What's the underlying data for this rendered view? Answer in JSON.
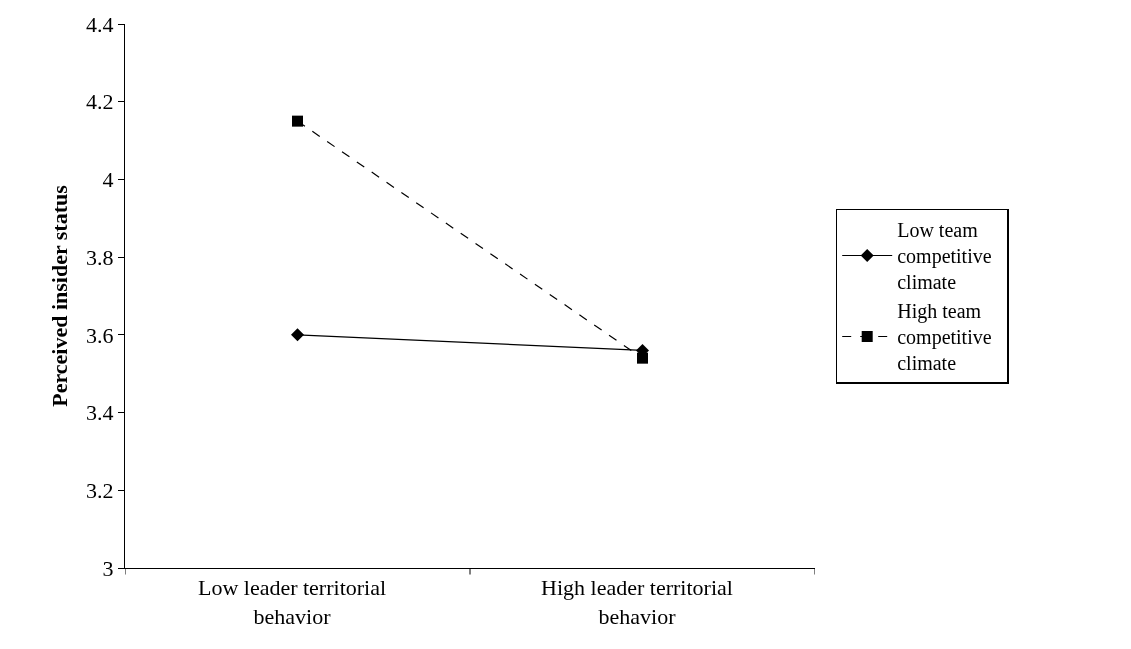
{
  "chart_data": {
    "type": "line",
    "ylabel": "Perceived insider status",
    "categories": [
      "Low leader territorial behavior",
      "High leader territorial behavior"
    ],
    "series": [
      {
        "name": "Low team competitive climate",
        "color": "#000000",
        "values": [
          3.6,
          3.56
        ],
        "marker": "diamond",
        "line_style": "solid"
      },
      {
        "name": "High team competitive climate",
        "color": "#000000",
        "values": [
          4.15,
          3.54
        ],
        "marker": "square",
        "line_style": "dashed"
      }
    ],
    "ylim": [
      3,
      4.4
    ],
    "yticks": [
      3,
      3.2,
      3.4,
      3.6,
      3.8,
      4,
      4.2,
      4.4
    ],
    "legend": "right"
  }
}
